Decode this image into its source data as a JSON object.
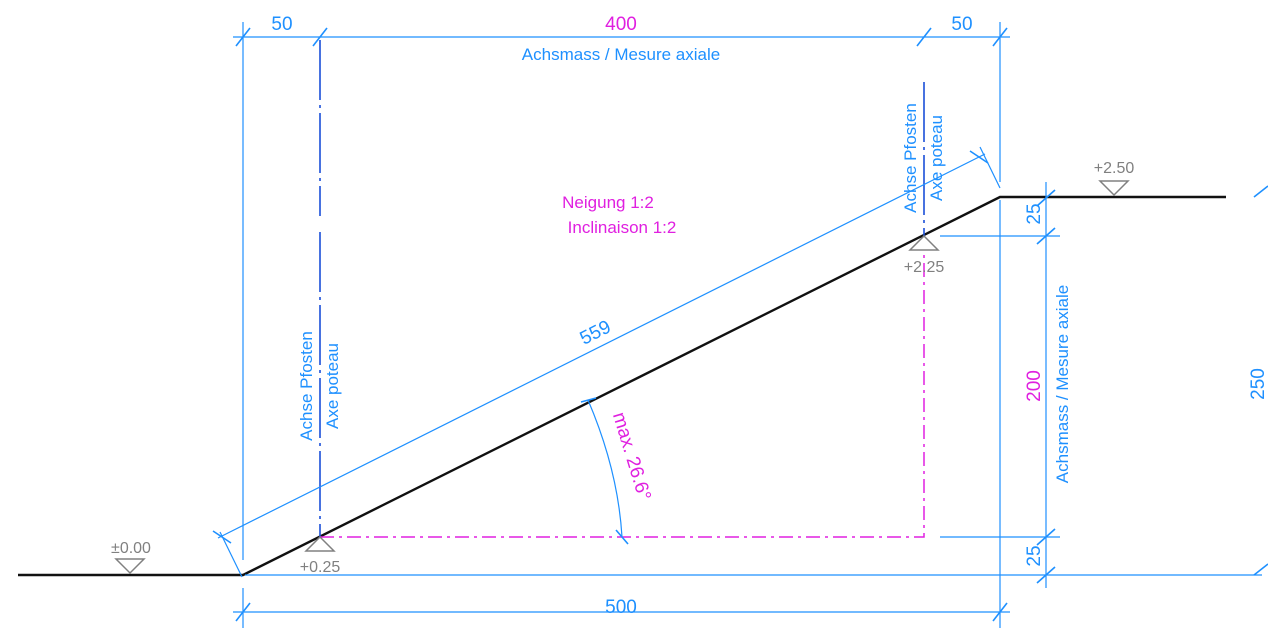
{
  "dimensions": {
    "top_left": "50",
    "top_axis": "400",
    "top_right": "50",
    "axial_label_top": "Achsmass / Mesure axiale",
    "bottom_total": "500",
    "slope_length": "559",
    "right_top": "25",
    "right_axis": "200",
    "right_bottom": "25",
    "axial_label_right": "Achsmass / Mesure axiale",
    "right_total": "250"
  },
  "labels": {
    "post_axis_left_de": "Achse Pfosten",
    "post_axis_left_fr": "Axe poteau",
    "post_axis_right_de": "Achse Pfosten",
    "post_axis_right_fr": "Axe poteau",
    "slope_de": "Neigung  1:2",
    "slope_fr": "Inclinaison  1:2",
    "angle": "max. 26.6°"
  },
  "levels": {
    "ground_left": "±0.00",
    "post_left": "+0.25",
    "post_right": "+2.25",
    "ground_right": "+2.50"
  },
  "colors": {
    "dimension": "#1e90ff",
    "accent": "#e020e0",
    "level_marker": "#808080",
    "ramp": "#111111"
  }
}
